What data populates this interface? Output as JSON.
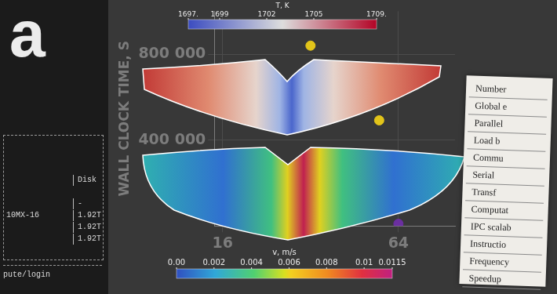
{
  "chart_data": {
    "type": "scatter",
    "y_label": "WALL CLOCK TIME, S",
    "x": [
      32,
      55,
      64
    ],
    "values": [
      840000,
      492000,
      10000
    ],
    "colors": [
      "#e2c41a",
      "#e2c41a",
      "#6b2fa0"
    ],
    "marker": "circle",
    "log": "x",
    "xlim": [
      15,
      100
    ],
    "xticks": [
      16,
      64
    ],
    "ylim": [
      0,
      1000000
    ],
    "yticks": [
      {
        "value": 400000,
        "label": "400 000"
      },
      {
        "value": 800000,
        "label": "800 000"
      }
    ],
    "grid": true
  },
  "fields": {
    "temperature": {
      "title": "T, K",
      "range": [
        1697,
        1709
      ],
      "ticks": [
        {
          "value": 1697,
          "label": "1697."
        },
        1699,
        1702,
        1705,
        {
          "value": 1709,
          "label": "1709."
        }
      ]
    },
    "velocity": {
      "title": "v, m/s",
      "range": [
        0,
        0.0115
      ],
      "ticks": [
        {
          "value": 0,
          "label": "0.00"
        },
        0.002,
        0.004,
        0.006,
        0.008,
        0.01,
        0.0115
      ]
    }
  },
  "terminal": {
    "logo": "a",
    "header": "Disk",
    "rows": [
      {
        "disk": "-"
      },
      {
        "node": "10MX-16",
        "disk": "1.92T"
      },
      {
        "disk": "1.92T"
      },
      {
        "disk": "1.92T"
      }
    ],
    "footer": "pute/login"
  },
  "card": {
    "lines": [
      "Number",
      "Global e",
      "Parallel",
      "Load b",
      "Commu",
      "Serial",
      "Transf",
      "Computat",
      "IPC scalab",
      "Instructio",
      "Frequency",
      "Speedup"
    ]
  }
}
